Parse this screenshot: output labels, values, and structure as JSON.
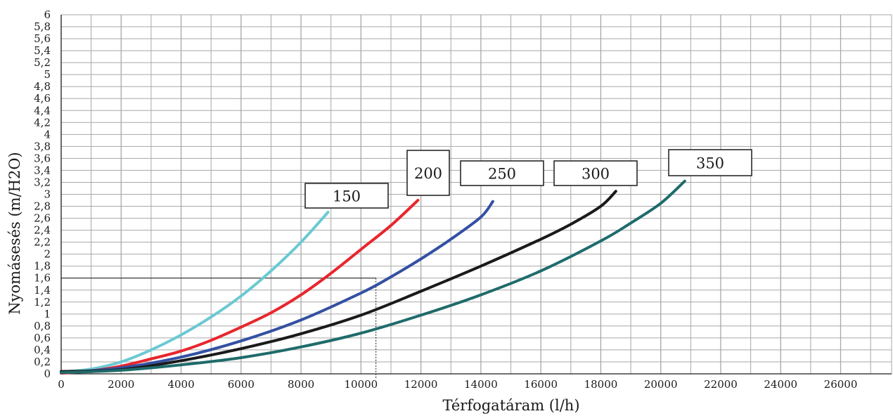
{
  "chart_data": {
    "type": "line",
    "title": "",
    "xlabel": "Térfogatáram (l/h)",
    "ylabel": "Nyomásesés (m/H2O)",
    "xlim": [
      0,
      27700
    ],
    "ylim": [
      0,
      6
    ],
    "grid": true,
    "x_ticks": [
      0,
      2000,
      4000,
      6000,
      8000,
      10000,
      12000,
      14000,
      16000,
      18000,
      20000,
      22000,
      24000,
      26000
    ],
    "y_ticks": [
      "0",
      "0,2",
      "0,4",
      "0,6",
      "0,8",
      "1",
      "1,2",
      "1,4",
      "1,6",
      "1,8",
      "2",
      "2,2",
      "2,4",
      "2,6",
      "2,8",
      "3",
      "3,2",
      "3,4",
      "3,6",
      "3,8",
      "4",
      "4,2",
      "4,4",
      "4,6",
      "4,8",
      "5",
      "5,2",
      "5,4",
      "5,6",
      "5,8",
      "6"
    ],
    "reference_point": {
      "x": 10500,
      "y": 1.6
    },
    "series": [
      {
        "name": "150",
        "color": "#6bc9d3",
        "points": [
          [
            0,
            0.03
          ],
          [
            1000,
            0.08
          ],
          [
            2000,
            0.2
          ],
          [
            3000,
            0.4
          ],
          [
            4000,
            0.65
          ],
          [
            5000,
            0.95
          ],
          [
            6000,
            1.3
          ],
          [
            7000,
            1.72
          ],
          [
            8000,
            2.2
          ],
          [
            8900,
            2.7
          ]
        ]
      },
      {
        "name": "200",
        "color": "#e8262d",
        "points": [
          [
            0,
            0.01
          ],
          [
            1000,
            0.05
          ],
          [
            2000,
            0.13
          ],
          [
            3000,
            0.25
          ],
          [
            4000,
            0.38
          ],
          [
            5000,
            0.56
          ],
          [
            6000,
            0.78
          ],
          [
            7000,
            1.02
          ],
          [
            8000,
            1.32
          ],
          [
            9000,
            1.68
          ],
          [
            10000,
            2.08
          ],
          [
            11000,
            2.48
          ],
          [
            11900,
            2.9
          ]
        ]
      },
      {
        "name": "250",
        "color": "#3350a3",
        "points": [
          [
            0,
            0.02
          ],
          [
            2000,
            0.1
          ],
          [
            4000,
            0.28
          ],
          [
            6000,
            0.55
          ],
          [
            8000,
            0.9
          ],
          [
            10000,
            1.35
          ],
          [
            11000,
            1.62
          ],
          [
            12000,
            1.92
          ],
          [
            13000,
            2.25
          ],
          [
            14000,
            2.62
          ],
          [
            14400,
            2.88
          ]
        ]
      },
      {
        "name": "300",
        "color": "#1a1a1a",
        "points": [
          [
            0,
            0.04
          ],
          [
            2000,
            0.07
          ],
          [
            4000,
            0.22
          ],
          [
            6000,
            0.42
          ],
          [
            8000,
            0.67
          ],
          [
            10000,
            0.98
          ],
          [
            12000,
            1.38
          ],
          [
            14000,
            1.8
          ],
          [
            16000,
            2.25
          ],
          [
            17000,
            2.5
          ],
          [
            18000,
            2.8
          ],
          [
            18500,
            3.05
          ]
        ]
      },
      {
        "name": "350",
        "color": "#1f6b6b",
        "points": [
          [
            0,
            0.02
          ],
          [
            2000,
            0.06
          ],
          [
            4000,
            0.15
          ],
          [
            6000,
            0.27
          ],
          [
            8000,
            0.45
          ],
          [
            10000,
            0.68
          ],
          [
            12000,
            0.98
          ],
          [
            14000,
            1.32
          ],
          [
            16000,
            1.72
          ],
          [
            18000,
            2.22
          ],
          [
            19000,
            2.52
          ],
          [
            20000,
            2.85
          ],
          [
            20800,
            3.22
          ]
        ]
      }
    ]
  }
}
